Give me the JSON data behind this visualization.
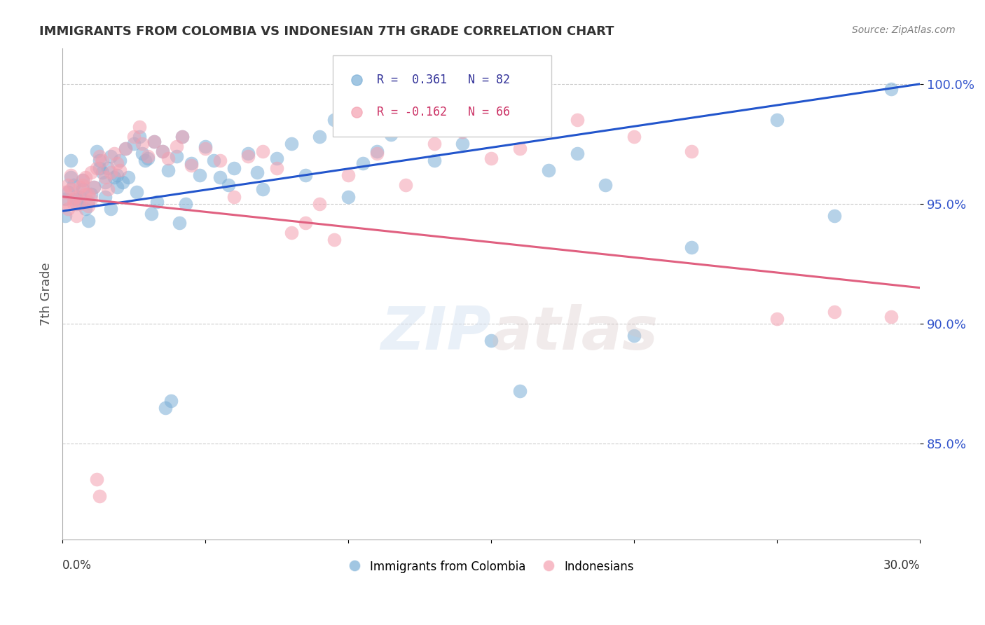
{
  "title": "IMMIGRANTS FROM COLOMBIA VS INDONESIAN 7TH GRADE CORRELATION CHART",
  "source": "Source: ZipAtlas.com",
  "ylabel": "7th Grade",
  "legend_blue": {
    "R": "0.361",
    "N": "82",
    "label": "Immigrants from Colombia"
  },
  "legend_pink": {
    "R": "-0.162",
    "N": "66",
    "label": "Indonesians"
  },
  "xlim": [
    0.0,
    0.3
  ],
  "ylim": [
    81.0,
    101.5
  ],
  "blue_color": "#7aaed6",
  "pink_color": "#f4a0b0",
  "blue_line_color": "#2255cc",
  "pink_line_color": "#e06080",
  "blue_scatter_x": [
    0.001,
    0.002,
    0.003,
    0.004,
    0.005,
    0.006,
    0.007,
    0.008,
    0.009,
    0.01,
    0.012,
    0.013,
    0.014,
    0.015,
    0.016,
    0.017,
    0.018,
    0.019,
    0.02,
    0.022,
    0.025,
    0.027,
    0.028,
    0.03,
    0.032,
    0.035,
    0.037,
    0.04,
    0.042,
    0.045,
    0.048,
    0.05,
    0.053,
    0.055,
    0.058,
    0.06,
    0.065,
    0.068,
    0.07,
    0.075,
    0.08,
    0.085,
    0.09,
    0.095,
    0.1,
    0.105,
    0.11,
    0.115,
    0.12,
    0.125,
    0.13,
    0.14,
    0.15,
    0.16,
    0.17,
    0.18,
    0.19,
    0.2,
    0.22,
    0.25,
    0.27,
    0.29,
    0.001,
    0.003,
    0.005,
    0.007,
    0.009,
    0.011,
    0.013,
    0.015,
    0.017,
    0.019,
    0.021,
    0.023,
    0.026,
    0.029,
    0.031,
    0.033,
    0.036,
    0.038,
    0.041,
    0.043
  ],
  "blue_scatter_y": [
    95.2,
    95.5,
    96.1,
    95.8,
    95.0,
    95.3,
    95.6,
    94.8,
    95.1,
    95.4,
    97.2,
    96.8,
    96.3,
    95.9,
    96.5,
    97.0,
    96.1,
    95.7,
    96.8,
    97.3,
    97.5,
    97.8,
    97.1,
    96.9,
    97.6,
    97.2,
    96.4,
    97.0,
    97.8,
    96.7,
    96.2,
    97.4,
    96.8,
    96.1,
    95.8,
    96.5,
    97.1,
    96.3,
    95.6,
    96.9,
    97.5,
    96.2,
    97.8,
    98.5,
    95.3,
    96.7,
    97.2,
    97.9,
    99.0,
    98.2,
    96.8,
    97.5,
    89.3,
    87.2,
    96.4,
    97.1,
    95.8,
    89.5,
    93.2,
    98.5,
    94.5,
    99.8,
    94.5,
    96.8,
    95.2,
    96.0,
    94.3,
    95.7,
    96.5,
    95.3,
    94.8,
    96.2,
    95.9,
    96.1,
    95.5,
    96.8,
    94.6,
    95.1,
    86.5,
    86.8,
    94.2,
    95.0
  ],
  "pink_scatter_x": [
    0.001,
    0.002,
    0.003,
    0.004,
    0.005,
    0.006,
    0.007,
    0.008,
    0.009,
    0.01,
    0.012,
    0.013,
    0.014,
    0.015,
    0.016,
    0.017,
    0.018,
    0.019,
    0.02,
    0.022,
    0.025,
    0.027,
    0.028,
    0.03,
    0.032,
    0.035,
    0.037,
    0.04,
    0.042,
    0.045,
    0.05,
    0.055,
    0.06,
    0.065,
    0.07,
    0.075,
    0.08,
    0.085,
    0.09,
    0.095,
    0.1,
    0.11,
    0.12,
    0.13,
    0.14,
    0.15,
    0.16,
    0.18,
    0.2,
    0.22,
    0.25,
    0.27,
    0.29,
    0.001,
    0.002,
    0.003,
    0.004,
    0.005,
    0.006,
    0.007,
    0.008,
    0.009,
    0.01,
    0.011,
    0.012,
    0.013
  ],
  "pink_scatter_y": [
    95.5,
    95.8,
    96.2,
    95.0,
    95.3,
    95.7,
    96.0,
    95.4,
    94.9,
    95.2,
    96.5,
    97.0,
    96.8,
    96.1,
    95.6,
    96.3,
    97.1,
    96.7,
    96.4,
    97.3,
    97.8,
    98.2,
    97.5,
    97.0,
    97.6,
    97.2,
    96.9,
    97.4,
    97.8,
    96.6,
    97.3,
    96.8,
    95.3,
    97.0,
    97.2,
    96.5,
    93.8,
    94.2,
    95.0,
    93.5,
    96.2,
    97.1,
    95.8,
    97.5,
    98.0,
    96.9,
    97.3,
    98.5,
    97.8,
    97.2,
    90.2,
    90.5,
    90.3,
    95.1,
    94.8,
    95.6,
    95.2,
    94.5,
    95.0,
    95.8,
    96.1,
    95.4,
    96.3,
    95.7,
    83.5,
    82.8
  ],
  "blue_line_x": [
    0.0,
    0.3
  ],
  "blue_line_y": [
    94.7,
    100.0
  ],
  "pink_line_x": [
    0.0,
    0.3
  ],
  "pink_line_y": [
    95.3,
    91.5
  ],
  "background_color": "#ffffff",
  "grid_color": "#cccccc",
  "tick_label_color": "#3355cc",
  "title_color": "#333333",
  "ylabel_color": "#555555"
}
